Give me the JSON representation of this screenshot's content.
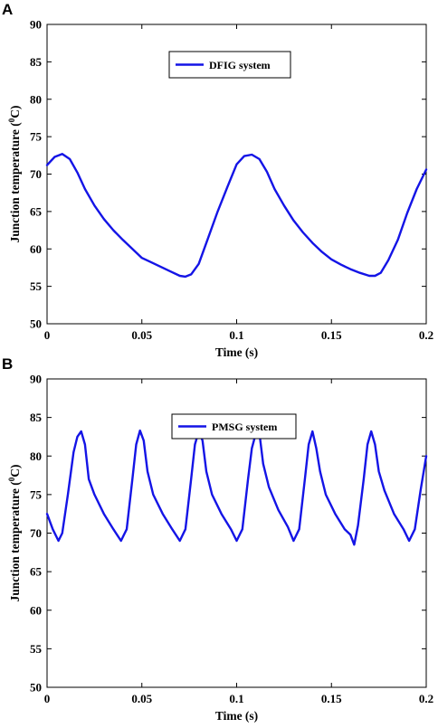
{
  "chart_data": [
    {
      "panel_label": "A",
      "type": "line",
      "xlabel": "Time (s)",
      "ylabel": "Junction temperature (",
      "ylabel_sup": "0",
      "ylabel_unit": "C)",
      "xlim": [
        0,
        0.2
      ],
      "ylim": [
        50,
        90
      ],
      "xticks": [
        0,
        0.05,
        0.1,
        0.15,
        0.2
      ],
      "xtick_labels": [
        "0",
        "0.05",
        "0.1",
        "0.15",
        "0.2"
      ],
      "yticks": [
        50,
        55,
        60,
        65,
        70,
        75,
        80,
        85,
        90
      ],
      "ytick_labels": [
        "50",
        "55",
        "60",
        "65",
        "70",
        "75",
        "80",
        "85",
        "90"
      ],
      "grid": false,
      "legend_position": "top-center",
      "series": [
        {
          "name": "DFIG system",
          "color": "#1414e6",
          "x": [
            0,
            0.004,
            0.008,
            0.012,
            0.016,
            0.02,
            0.025,
            0.03,
            0.035,
            0.04,
            0.045,
            0.05,
            0.055,
            0.06,
            0.065,
            0.07,
            0.073,
            0.076,
            0.08,
            0.085,
            0.09,
            0.095,
            0.1,
            0.104,
            0.108,
            0.112,
            0.116,
            0.12,
            0.125,
            0.13,
            0.135,
            0.14,
            0.145,
            0.15,
            0.155,
            0.16,
            0.165,
            0.17,
            0.173,
            0.176,
            0.18,
            0.185,
            0.19,
            0.195,
            0.2
          ],
          "y": [
            71.2,
            72.3,
            72.7,
            72.0,
            70.2,
            68.0,
            65.8,
            64.0,
            62.5,
            61.2,
            60.0,
            58.8,
            58.2,
            57.6,
            57.0,
            56.4,
            56.3,
            56.6,
            58.0,
            61.5,
            65.0,
            68.2,
            71.3,
            72.4,
            72.6,
            72.0,
            70.3,
            68.0,
            65.8,
            63.8,
            62.2,
            60.8,
            59.6,
            58.6,
            57.9,
            57.3,
            56.8,
            56.4,
            56.4,
            56.8,
            58.5,
            61.2,
            64.8,
            68.0,
            70.6
          ]
        }
      ]
    },
    {
      "panel_label": "B",
      "type": "line",
      "xlabel": "Time (s)",
      "ylabel": "Junction temperature (",
      "ylabel_sup": "0",
      "ylabel_unit": "C)",
      "xlim": [
        0,
        0.2
      ],
      "ylim": [
        50,
        90
      ],
      "xticks": [
        0,
        0.05,
        0.1,
        0.15,
        0.2
      ],
      "xtick_labels": [
        "0",
        "0.05",
        "0.1",
        "0.15",
        "0.2"
      ],
      "yticks": [
        50,
        55,
        60,
        65,
        70,
        75,
        80,
        85,
        90
      ],
      "ytick_labels": [
        "50",
        "55",
        "60",
        "65",
        "70",
        "75",
        "80",
        "85",
        "90"
      ],
      "grid": false,
      "legend_position": "top-center",
      "series": [
        {
          "name": "PMSG system",
          "color": "#1414e6",
          "x": [
            0,
            0.003,
            0.006,
            0.008,
            0.011,
            0.014,
            0.016,
            0.018,
            0.02,
            0.022,
            0.025,
            0.03,
            0.035,
            0.039,
            0.042,
            0.045,
            0.047,
            0.049,
            0.051,
            0.053,
            0.056,
            0.061,
            0.066,
            0.07,
            0.073,
            0.076,
            0.078,
            0.08,
            0.082,
            0.084,
            0.087,
            0.092,
            0.097,
            0.1,
            0.103,
            0.106,
            0.108,
            0.11,
            0.112,
            0.114,
            0.117,
            0.122,
            0.127,
            0.13,
            0.133,
            0.136,
            0.138,
            0.14,
            0.142,
            0.144,
            0.147,
            0.152,
            0.157,
            0.16,
            0.162,
            0.164,
            0.167,
            0.169,
            0.171,
            0.173,
            0.175,
            0.178,
            0.183,
            0.188,
            0.191,
            0.194,
            0.197,
            0.2
          ],
          "y": [
            72.5,
            70.5,
            69.0,
            70.0,
            75.0,
            80.5,
            82.5,
            83.2,
            81.5,
            77.0,
            75.0,
            72.5,
            70.5,
            69.0,
            70.5,
            77.0,
            81.5,
            83.3,
            82.0,
            78.0,
            75.0,
            72.5,
            70.5,
            69.0,
            70.5,
            77.0,
            81.5,
            83.2,
            82.0,
            78.0,
            75.0,
            72.5,
            70.5,
            69.0,
            70.5,
            77.0,
            81.0,
            82.8,
            83.0,
            79.0,
            76.0,
            73.0,
            70.8,
            69.0,
            70.5,
            77.0,
            81.5,
            83.2,
            81.0,
            78.0,
            75.0,
            72.5,
            70.5,
            69.8,
            68.5,
            71.0,
            77.0,
            81.5,
            83.2,
            81.5,
            78.0,
            75.5,
            72.5,
            70.5,
            69.0,
            70.5,
            75.5,
            80.0
          ]
        }
      ]
    }
  ]
}
